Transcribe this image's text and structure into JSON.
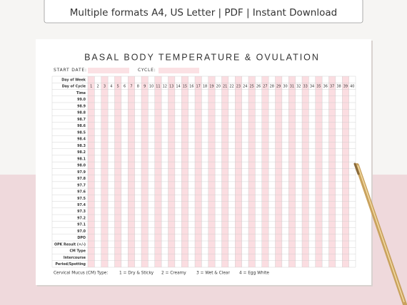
{
  "banner": "Multiple formats A4, US Letter | PDF | Instant Download",
  "title": "BASAL BODY TEMPERATURE & OVULATION",
  "fields": {
    "start_date": "START DATE:",
    "cycle": "CYCLE:"
  },
  "chart": {
    "header_rows": [
      "Day of Week",
      "Day of Cycle",
      "Time"
    ],
    "days": [
      1,
      2,
      3,
      4,
      5,
      6,
      7,
      8,
      9,
      10,
      11,
      12,
      13,
      14,
      15,
      16,
      17,
      18,
      19,
      20,
      21,
      22,
      23,
      24,
      25,
      26,
      27,
      28,
      29,
      30,
      31,
      32,
      33,
      34,
      35,
      36,
      37,
      38,
      39,
      40
    ],
    "temperatures": [
      "99.0",
      "98.9",
      "98.8",
      "98.7",
      "98.6",
      "98.5",
      "98.4",
      "98.3",
      "98.2",
      "98.1",
      "98.0",
      "97.9",
      "97.8",
      "97.7",
      "97.6",
      "97.5",
      "97.4",
      "97.3",
      "97.2",
      "97.1",
      "97.0"
    ],
    "footer_rows": [
      "DPO",
      "OPK Result (+/-)",
      "CM Type",
      "Intercourse",
      "Period/Spotting"
    ]
  },
  "legend": {
    "title": "Cervical Mucus (CM) Type:",
    "items": [
      "1 = Dry & Sticky",
      "2 = Creamy",
      "3 = Wet & Clear",
      "4 = Egg White"
    ]
  }
}
